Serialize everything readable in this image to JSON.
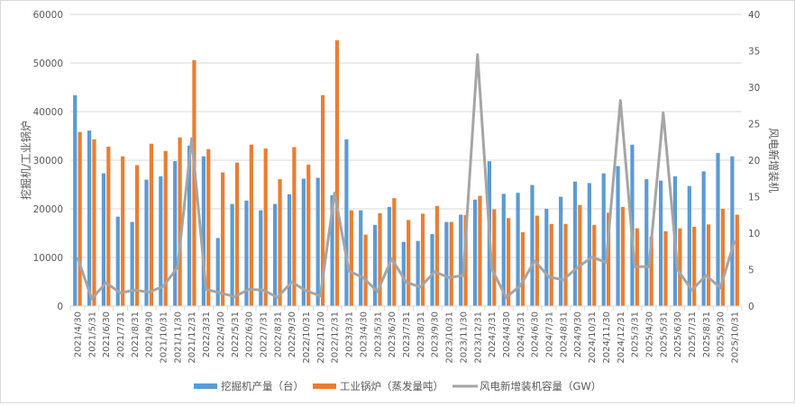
{
  "chart_data": {
    "type": "bar",
    "combo": "bar+line (dual axis)",
    "title": "",
    "categories": [
      "2021/4/30",
      "2021/5/31",
      "2021/6/30",
      "2021/7/31",
      "2021/8/31",
      "2021/9/30",
      "2021/10/31",
      "2021/11/30",
      "2021/12/31",
      "2022/3/31",
      "2022/4/30",
      "2022/5/31",
      "2022/6/30",
      "2022/7/31",
      "2022/8/31",
      "2022/9/30",
      "2022/10/31",
      "2022/11/30",
      "2022/12/31",
      "2023/3/31",
      "2023/4/30",
      "2023/5/31",
      "2023/6/30",
      "2023/7/31",
      "2023/8/31",
      "2023/9/30",
      "2023/10/31",
      "2023/11/30",
      "2023/12/31",
      "2024/3/31",
      "2024/4/30",
      "2024/5/31",
      "2024/6/30",
      "2024/7/31",
      "2024/8/31",
      "2024/9/30",
      "2024/10/31",
      "2024/11/30",
      "2024/12/31",
      "2025/3/31",
      "2025/4/30",
      "2025/5/31",
      "2025/6/30",
      "2025/7/31",
      "2025/8/31",
      "2025/9/30",
      "2025/10/31"
    ],
    "series": [
      {
        "name": "挖掘机产量（台）",
        "type": "bar",
        "axis": "left",
        "color": "#5b9bd5",
        "values": [
          43400,
          36100,
          27300,
          18400,
          17300,
          26000,
          26700,
          29800,
          33000,
          30800,
          14000,
          21000,
          21700,
          19700,
          21000,
          23000,
          26200,
          26400,
          22800,
          34300,
          19700,
          16700,
          20400,
          13200,
          13400,
          14800,
          17300,
          18800,
          21900,
          29800,
          23100,
          23300,
          24900,
          20000,
          22500,
          25600,
          25300,
          27300,
          28800,
          33200,
          26100,
          25800,
          26700,
          24700,
          27700,
          31500,
          30800
        ]
      },
      {
        "name": "工业锅炉（蒸发量吨）",
        "type": "bar",
        "axis": "left",
        "color": "#ed7d31",
        "values": [
          35800,
          34300,
          32800,
          30800,
          29000,
          33400,
          31900,
          34700,
          50600,
          32300,
          27500,
          29500,
          33200,
          32400,
          26100,
          32700,
          29100,
          43400,
          54700,
          19700,
          14700,
          19100,
          22200,
          17700,
          19000,
          20600,
          17300,
          18700,
          22700,
          19900,
          18100,
          15200,
          18600,
          16900,
          16900,
          20800,
          16700,
          19200,
          20400,
          16000,
          14300,
          15400,
          16000,
          16300,
          16800,
          20000,
          18800
        ]
      },
      {
        "name": "风电新增装机容量（GW）",
        "type": "line",
        "axis": "right",
        "color": "#a5a5a5",
        "values": [
          6.7,
          1.0,
          3.2,
          1.8,
          2.2,
          1.9,
          2.7,
          5.3,
          23.0,
          2.3,
          1.8,
          1.3,
          2.3,
          2.2,
          1.2,
          3.3,
          2.1,
          1.4,
          15.5,
          4.8,
          3.9,
          2.0,
          6.5,
          3.3,
          2.6,
          4.7,
          3.9,
          4.2,
          34.5,
          5.1,
          1.2,
          2.8,
          6.2,
          4.0,
          3.6,
          5.3,
          6.7,
          6.0,
          28.2,
          5.4,
          5.4,
          26.5,
          5.0,
          2.2,
          4.2,
          2.5,
          9.0
        ]
      }
    ],
    "ylabel": "挖掘机/工业锅炉",
    "y2label": "风电新增装机",
    "ylim": [
      0,
      60000
    ],
    "y2lim": [
      0,
      40
    ],
    "yticks": [
      "0",
      "10000",
      "20000",
      "30000",
      "40000",
      "50000",
      "60000"
    ],
    "y2ticks": [
      "0",
      "5",
      "10",
      "15",
      "20",
      "25",
      "30",
      "35",
      "40"
    ],
    "grid": true,
    "legend_position": "bottom"
  },
  "legend": [
    {
      "label": "挖掘机产量（台）",
      "swatch": "bar",
      "color": "#5b9bd5"
    },
    {
      "label": "工业锅炉（蒸发量吨）",
      "swatch": "bar",
      "color": "#ed7d31"
    },
    {
      "label": "风电新增装机容量（GW）",
      "swatch": "line",
      "color": "#a5a5a5"
    }
  ]
}
